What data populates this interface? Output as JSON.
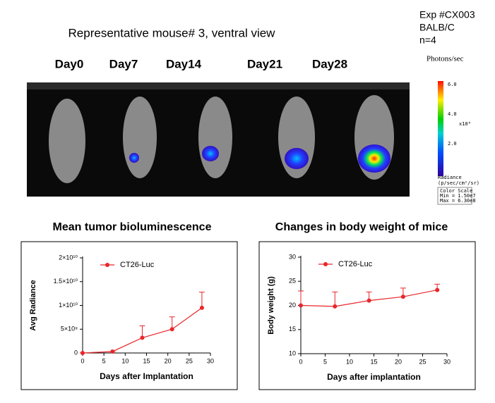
{
  "figure": {
    "caption": "Representative  mouse# 3,  ventral view",
    "experiment": [
      "Exp #CX003",
      "BALB/C",
      "n=4"
    ],
    "unit": "Photons/sec",
    "days": [
      "Day0",
      "Day7",
      "Day14",
      "Day21",
      "Day28"
    ],
    "colorbar": {
      "ticks": [
        "6.0",
        "4.0",
        "2.0"
      ],
      "multiplier": "x10⁸",
      "label": [
        "Radiance",
        "(p/sec/cm²/sr)"
      ],
      "scale": [
        "Color Scale",
        "Min = 1.50e7",
        "Max = 6.30e8"
      ]
    }
  },
  "chart_data": [
    {
      "type": "line",
      "title": "Mean tumor bioluminescence",
      "xlabel": "Days after Implantation",
      "ylabel": "Avg Radiance",
      "x": [
        0,
        7,
        14,
        21,
        28
      ],
      "series": [
        {
          "name": "CT26-Luc",
          "color": "#e8262a",
          "values": [
            0,
            300000000,
            3200000000,
            5000000000,
            9500000000
          ],
          "errors": [
            0,
            0,
            2500000000,
            2600000000,
            3300000000
          ]
        }
      ],
      "xlim": [
        0,
        30
      ],
      "xticks": [
        0,
        5,
        10,
        15,
        20,
        25,
        30
      ],
      "ylim": [
        0,
        20000000000
      ],
      "yticks": [
        0,
        {
          "value": 5000000000,
          "label": "5×10⁹"
        },
        {
          "value": 10000000000,
          "label": "1×10¹⁰"
        },
        {
          "value": 15000000000,
          "label": "1.5×10¹⁰"
        },
        {
          "value": 20000000000,
          "label": "2×10¹⁰"
        }
      ],
      "legend": "upper left"
    },
    {
      "type": "line",
      "title": "Changes in body weight of mice",
      "xlabel": "Days after implantation",
      "ylabel": "Body weight (g)",
      "x": [
        0,
        7,
        14,
        21,
        28
      ],
      "series": [
        {
          "name": "CT26-Luc",
          "color": "#e8262a",
          "values": [
            20,
            19.8,
            21,
            21.8,
            23.2
          ],
          "errors": [
            3,
            3,
            1.8,
            1.8,
            1.2
          ]
        }
      ],
      "xlim": [
        0,
        30
      ],
      "xticks": [
        0,
        5,
        10,
        15,
        20,
        25,
        30
      ],
      "ylim": [
        10,
        30
      ],
      "yticks": [
        10,
        15,
        20,
        25,
        30
      ],
      "legend": "upper left"
    }
  ]
}
